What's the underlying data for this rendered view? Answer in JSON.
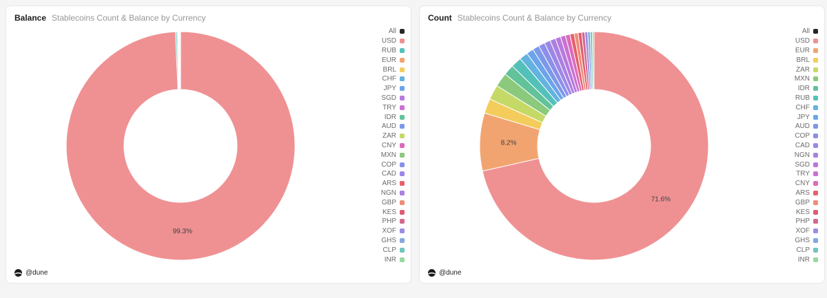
{
  "colors": {
    "background": "#f5f5f6",
    "card_border": "#e7e7e7",
    "title": "#1b1b1b",
    "subtitle": "#969696",
    "legend_text": "#6b6b6b",
    "slice_label": "#3f3f3f"
  },
  "palette": {
    "All": "#262626",
    "USD": "#ef9193",
    "EUR": "#f2a470",
    "BRL": "#f3cc5c",
    "ZAR": "#c5d967",
    "MXN": "#8bc97c",
    "IDR": "#62c299",
    "RUB": "#53c1b9",
    "CHF": "#63b2e0",
    "JPY": "#6ba4ea",
    "AUD": "#7c99e9",
    "COP": "#8c8fe9",
    "CAD": "#9d87e6",
    "NGN": "#aa80e1",
    "SGD": "#b879de",
    "TRY": "#c971d3",
    "CNY": "#dc6abc",
    "ARS": "#e6606b",
    "GBP": "#ee8d74",
    "KES": "#de5c72",
    "PHP": "#d2698f",
    "XOF": "#9c8be2",
    "GHS": "#83a8dd",
    "CLP": "#6fc5bf",
    "INR": "#9ad7a1"
  },
  "panels": [
    {
      "title": "Balance",
      "subtitle": "Stablecoins Count & Balance by Currency",
      "footer": "@dune",
      "legend": [
        "All",
        "USD",
        "RUB",
        "EUR",
        "BRL",
        "CHF",
        "JPY",
        "SGD",
        "TRY",
        "IDR",
        "AUD",
        "ZAR",
        "CNY",
        "MXN",
        "COP",
        "CAD",
        "ARS",
        "NGN",
        "GBP",
        "KES",
        "PHP",
        "XOF",
        "GHS",
        "CLP",
        "INR"
      ]
    },
    {
      "title": "Count",
      "subtitle": "Stablecoins Count & Balance by Currency",
      "footer": "@dune",
      "legend": [
        "All",
        "USD",
        "EUR",
        "BRL",
        "ZAR",
        "MXN",
        "IDR",
        "RUB",
        "CHF",
        "JPY",
        "AUD",
        "COP",
        "CAD",
        "NGN",
        "SGD",
        "TRY",
        "CNY",
        "ARS",
        "GBP",
        "KES",
        "PHP",
        "XOF",
        "GHS",
        "CLP",
        "INR"
      ]
    }
  ],
  "chart_data": [
    {
      "type": "pie",
      "title": "Balance — Stablecoins Count & Balance by Currency",
      "donut": true,
      "start_angle_deg": 0,
      "direction": "clockwise",
      "legend_position": "right",
      "label_threshold": 5,
      "visible_labels": [
        {
          "name": "USD",
          "text": "99.3%"
        }
      ],
      "categories": [
        "USD",
        "RUB",
        "EUR",
        "BRL",
        "CHF",
        "JPY",
        "SGD",
        "TRY",
        "IDR",
        "AUD",
        "ZAR",
        "CNY",
        "MXN",
        "COP",
        "CAD",
        "ARS",
        "NGN",
        "GBP",
        "KES",
        "PHP",
        "XOF",
        "GHS",
        "CLP",
        "INR"
      ],
      "values": [
        99.3,
        0.2,
        0.15,
        0.07,
        0.05,
        0.04,
        0.03,
        0.025,
        0.02,
        0.018,
        0.016,
        0.014,
        0.012,
        0.011,
        0.01,
        0.009,
        0.008,
        0.007,
        0.006,
        0.005,
        0.004,
        0.004,
        0.003,
        0.003
      ]
    },
    {
      "type": "pie",
      "title": "Count — Stablecoins Count & Balance by Currency",
      "donut": true,
      "start_angle_deg": 0,
      "direction": "clockwise",
      "legend_position": "right",
      "label_threshold": 5,
      "visible_labels": [
        {
          "name": "USD",
          "text": "71.6%"
        },
        {
          "name": "EUR",
          "text": "8.2%"
        }
      ],
      "categories": [
        "USD",
        "EUR",
        "BRL",
        "ZAR",
        "MXN",
        "IDR",
        "RUB",
        "CHF",
        "JPY",
        "AUD",
        "COP",
        "CAD",
        "NGN",
        "SGD",
        "TRY",
        "CNY",
        "ARS",
        "GBP",
        "KES",
        "PHP",
        "XOF",
        "GHS",
        "CLP",
        "INR"
      ],
      "values": [
        71.6,
        8.2,
        2.1,
        2.1,
        2.0,
        1.5,
        1.5,
        1.2,
        1.0,
        0.95,
        0.9,
        0.85,
        0.8,
        0.75,
        0.7,
        0.65,
        0.6,
        0.55,
        0.5,
        0.45,
        0.4,
        0.35,
        0.3,
        0.25
      ]
    }
  ]
}
